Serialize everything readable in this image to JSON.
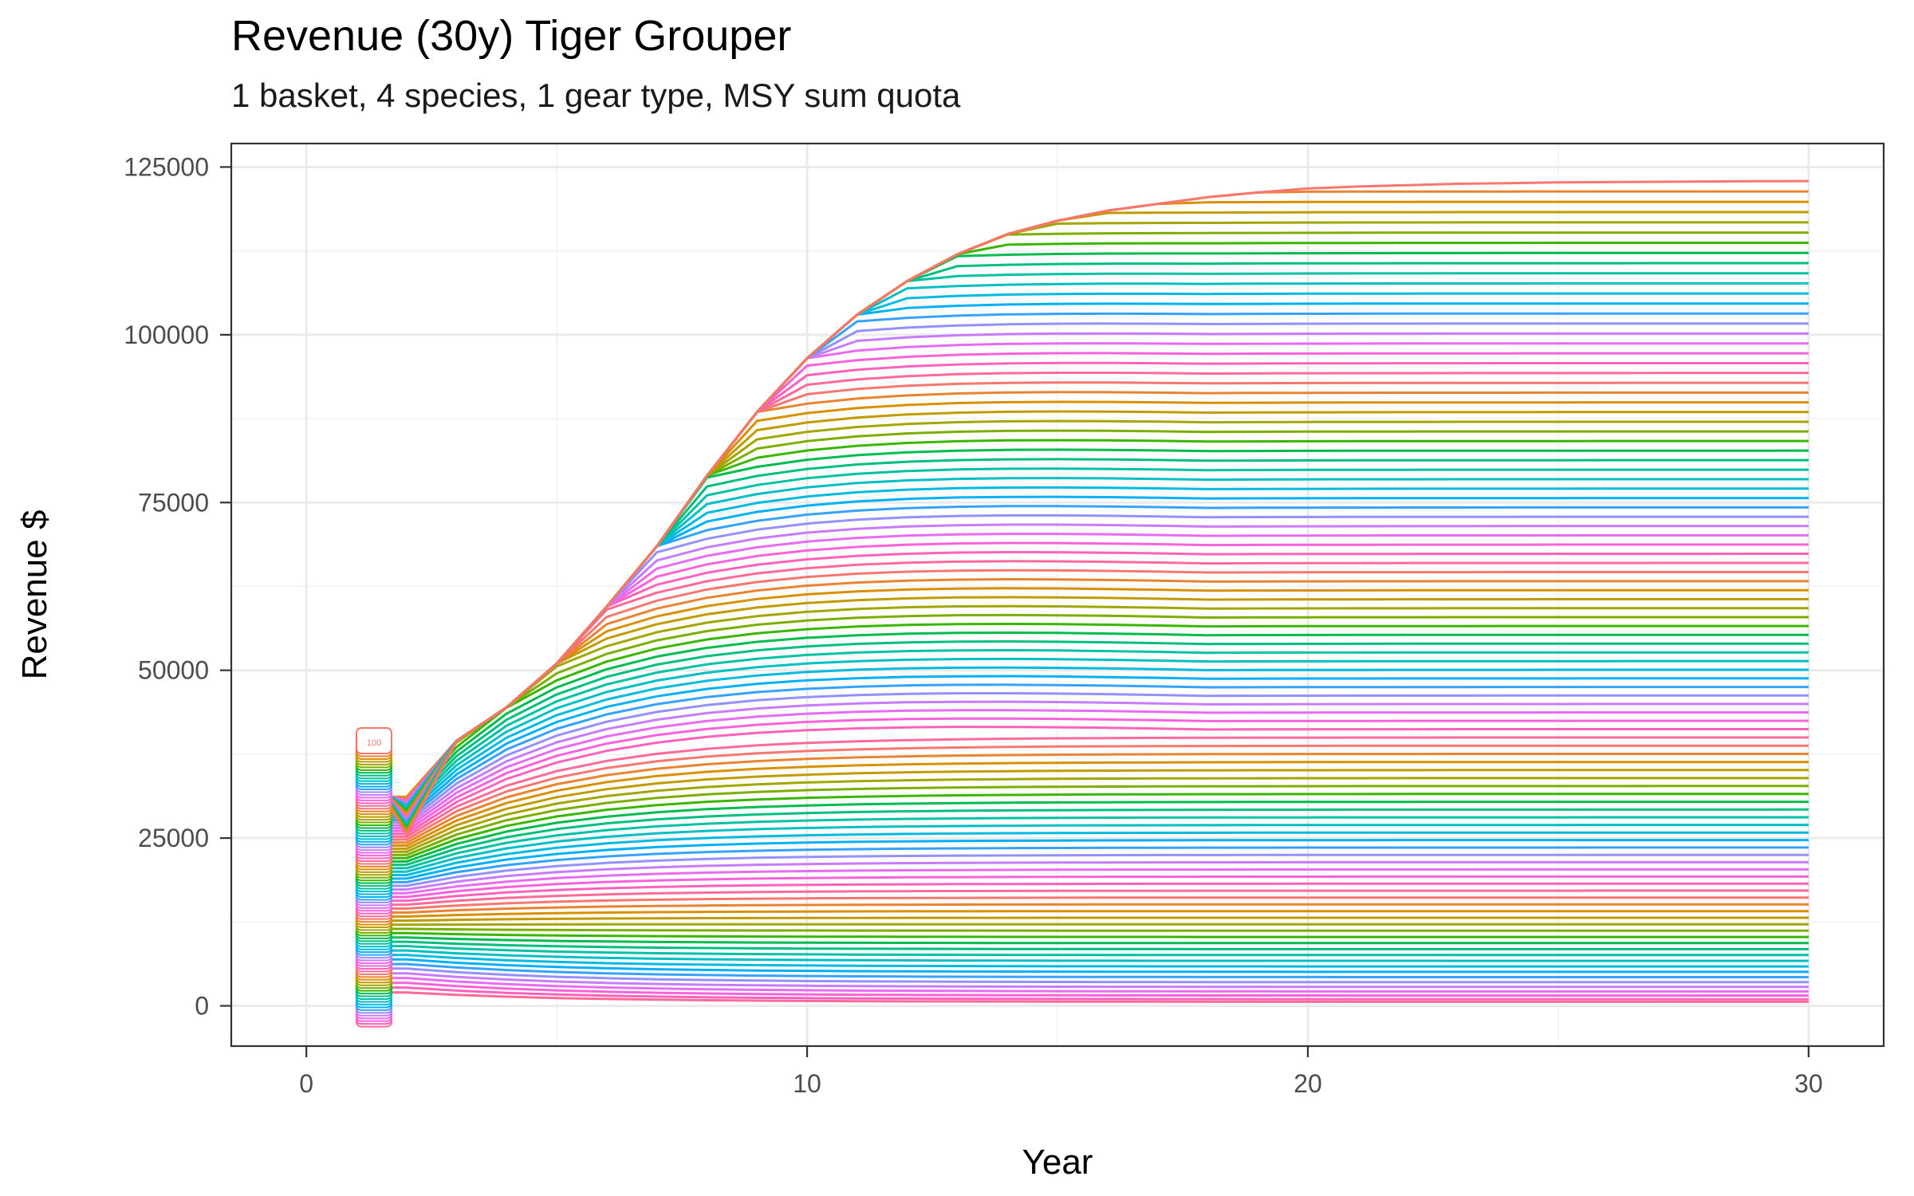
{
  "chart_data": {
    "type": "line",
    "title": "Revenue (30y) Tiger Grouper",
    "subtitle": "1 basket, 4 species, 1 gear type, MSY sum quota",
    "xlabel": "Year",
    "ylabel": "Revenue $",
    "xlim": [
      -1.5,
      31.5
    ],
    "ylim": [
      -6000,
      128500
    ],
    "x_ticks": [
      0,
      10,
      20,
      30
    ],
    "x_tick_labels": [
      "0",
      "10",
      "20",
      "30"
    ],
    "y_ticks": [
      0,
      25000,
      50000,
      75000,
      100000,
      125000
    ],
    "y_tick_labels": [
      "0",
      "25000",
      "50000",
      "75000",
      "100000",
      "125000"
    ],
    "grid": true,
    "legend": "none",
    "n_series": 100,
    "series_value_range": [
      1,
      100
    ],
    "x": [
      1,
      2,
      3,
      4,
      5,
      6,
      7,
      8,
      9,
      10,
      11,
      12,
      13,
      14,
      15,
      16,
      17,
      18,
      19,
      20,
      21,
      22,
      23,
      24,
      25,
      26,
      27,
      28,
      29,
      30
    ],
    "envelope_max": [
      32500,
      35000,
      39500,
      44500,
      51000,
      59500,
      68500,
      79000,
      88500,
      96500,
      103000,
      108000,
      112000,
      115000,
      117000,
      118500,
      119500,
      120500,
      121200,
      121800,
      122100,
      122300,
      122500,
      122600,
      122700,
      122750,
      122800,
      122850,
      122880,
      122900
    ],
    "series_final_value_min": 600,
    "series_final_value_max": 122900,
    "start_label": "100",
    "colors": {
      "hue_start": 15,
      "hue_end": 375,
      "top_series": "#f8766d"
    }
  }
}
